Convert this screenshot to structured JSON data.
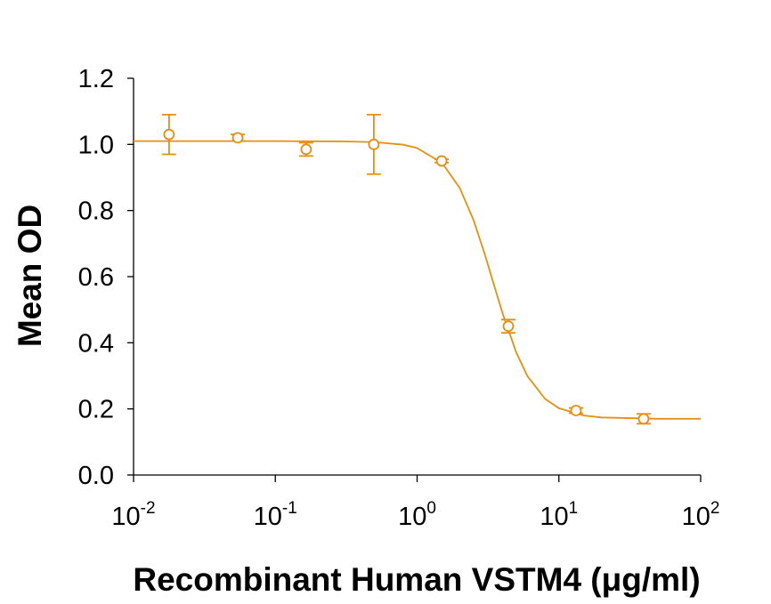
{
  "chart_data": {
    "type": "scatter",
    "xscale": "log",
    "xlabel": "Recombinant Human VSTM4 (μg/ml)",
    "ylabel": "Mean OD",
    "xlim": [
      0.01,
      100
    ],
    "ylim": [
      0,
      1.2
    ],
    "xticks": [
      {
        "value": 0.01,
        "label": "10",
        "superscript": "-2"
      },
      {
        "value": 0.1,
        "label": "10",
        "superscript": "-1"
      },
      {
        "value": 1,
        "label": "10",
        "superscript": "0"
      },
      {
        "value": 10,
        "label": "10",
        "superscript": "1"
      },
      {
        "value": 100,
        "label": "10",
        "superscript": "2"
      }
    ],
    "yticks": [
      {
        "value": 0,
        "label": "0.0"
      },
      0.2,
      0.4,
      0.6,
      0.8,
      {
        "value": 1,
        "label": "1.0"
      },
      1.2
    ],
    "series": [
      {
        "color": "#e38f12",
        "x": [
          0.0178,
          0.0543,
          0.165,
          0.495,
          1.49,
          4.4,
          13.2,
          39.6
        ],
        "values": [
          1.03,
          1.02,
          0.985,
          1.0,
          0.95,
          0.45,
          0.195,
          0.17
        ],
        "errors": [
          0.06,
          0.01,
          0.02,
          0.09,
          0.005,
          0.02,
          0.008,
          0.015
        ]
      }
    ],
    "fit": {
      "color": "#e38f12",
      "x": [
        0.01,
        0.1,
        0.3,
        0.5,
        0.8,
        1,
        1.5,
        2,
        2.5,
        3,
        3.5,
        4,
        5,
        6,
        8,
        10,
        15,
        20,
        50,
        100
      ],
      "values": [
        1.01,
        1.01,
        1.009,
        1.007,
        0.999,
        0.989,
        0.944,
        0.868,
        0.771,
        0.668,
        0.572,
        0.49,
        0.371,
        0.299,
        0.23,
        0.202,
        0.18,
        0.174,
        0.17,
        0.17
      ]
    }
  }
}
